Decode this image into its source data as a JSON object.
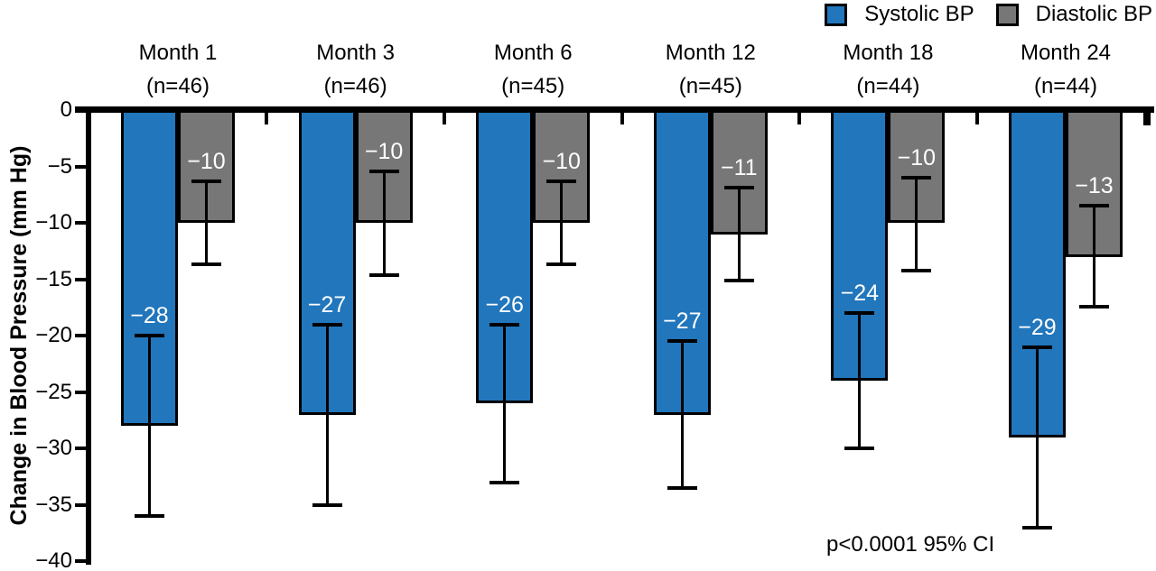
{
  "figure": {
    "legend": [
      {
        "name": "systolic-swatch",
        "label": "Systolic BP",
        "color": "#2176BC"
      },
      {
        "name": "diastolic-swatch",
        "label": "Diastolic BP",
        "color": "#777777"
      }
    ],
    "annotation": "p<0.0001 95% CI",
    "colors": {
      "systolic": "#2176BC",
      "diastolic": "#777777",
      "axis": "#000000",
      "bar_value_text": "#FFFFFF"
    }
  },
  "chart_data": {
    "type": "bar",
    "title": "",
    "ylabel": "Change in Blood Pressure (mm Hg)",
    "xlabel": "",
    "ylim": [
      0,
      -40
    ],
    "yticks": [
      0,
      -5,
      -10,
      -15,
      -20,
      -25,
      -30,
      -35,
      -40
    ],
    "grid": false,
    "legend_position": "top-right",
    "error_bars": "95% CI",
    "categories": [
      "Month 1",
      "Month 3",
      "Month 6",
      "Month 12",
      "Month 18",
      "Month 24"
    ],
    "category_n": [
      "(n=46)",
      "(n=46)",
      "(n=45)",
      "(n=45)",
      "(n=44)",
      "(n=44)"
    ],
    "series": [
      {
        "name": "Systolic BP",
        "color": "#2176BC",
        "values": [
          -28,
          -27,
          -26,
          -27,
          -24,
          -29
        ],
        "ci_upper": [
          -20,
          -19,
          -19,
          -20.5,
          -18,
          -21
        ],
        "ci_lower": [
          -36,
          -35,
          -33,
          -33.5,
          -30,
          -37
        ]
      },
      {
        "name": "Diastolic BP",
        "color": "#777777",
        "values": [
          -10,
          -10,
          -10,
          -11,
          -10,
          -13
        ],
        "ci_upper": [
          -6.3,
          -5.4,
          -6.3,
          -6.9,
          -6,
          -8.5
        ],
        "ci_lower": [
          -13.7,
          -14.6,
          -13.7,
          -15.1,
          -14.2,
          -17.4
        ]
      }
    ],
    "annotation": "p<0.0001 95% CI"
  }
}
